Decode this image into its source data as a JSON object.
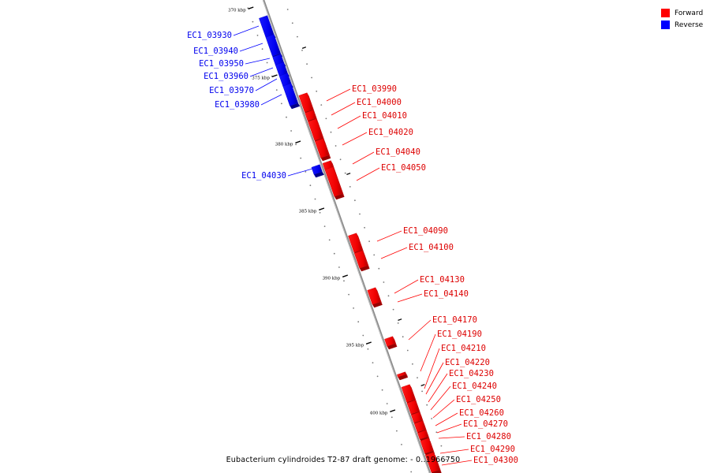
{
  "legend": {
    "forward_label": "Forward",
    "reverse_label": "Reverse",
    "forward_color": "#ff0000",
    "reverse_color": "#0000ff"
  },
  "caption": "Eubacterium cylindroides T2-87 draft genome. - 0..1966750",
  "scale_labels": [
    "370 kbp",
    "375 kbp",
    "380 kbp",
    "385 kbp",
    "390 kbp",
    "395 kbp",
    "400 kbp"
  ],
  "reverse_genes": [
    "EC1_03930",
    "EC1_03940",
    "EC1_03950",
    "EC1_03960",
    "EC1_03970",
    "EC1_03980",
    "EC1_04030"
  ],
  "forward_genes": [
    "EC1_03990",
    "EC1_04000",
    "EC1_04010",
    "EC1_04020",
    "EC1_04040",
    "EC1_04050",
    "EC1_04090",
    "EC1_04100",
    "EC1_04130",
    "EC1_04140",
    "EC1_04170",
    "EC1_04190",
    "EC1_04210",
    "EC1_04220",
    "EC1_04230",
    "EC1_04240",
    "EC1_04250",
    "EC1_04260",
    "EC1_04270",
    "EC1_04280",
    "EC1_04290",
    "EC1_04300"
  ]
}
